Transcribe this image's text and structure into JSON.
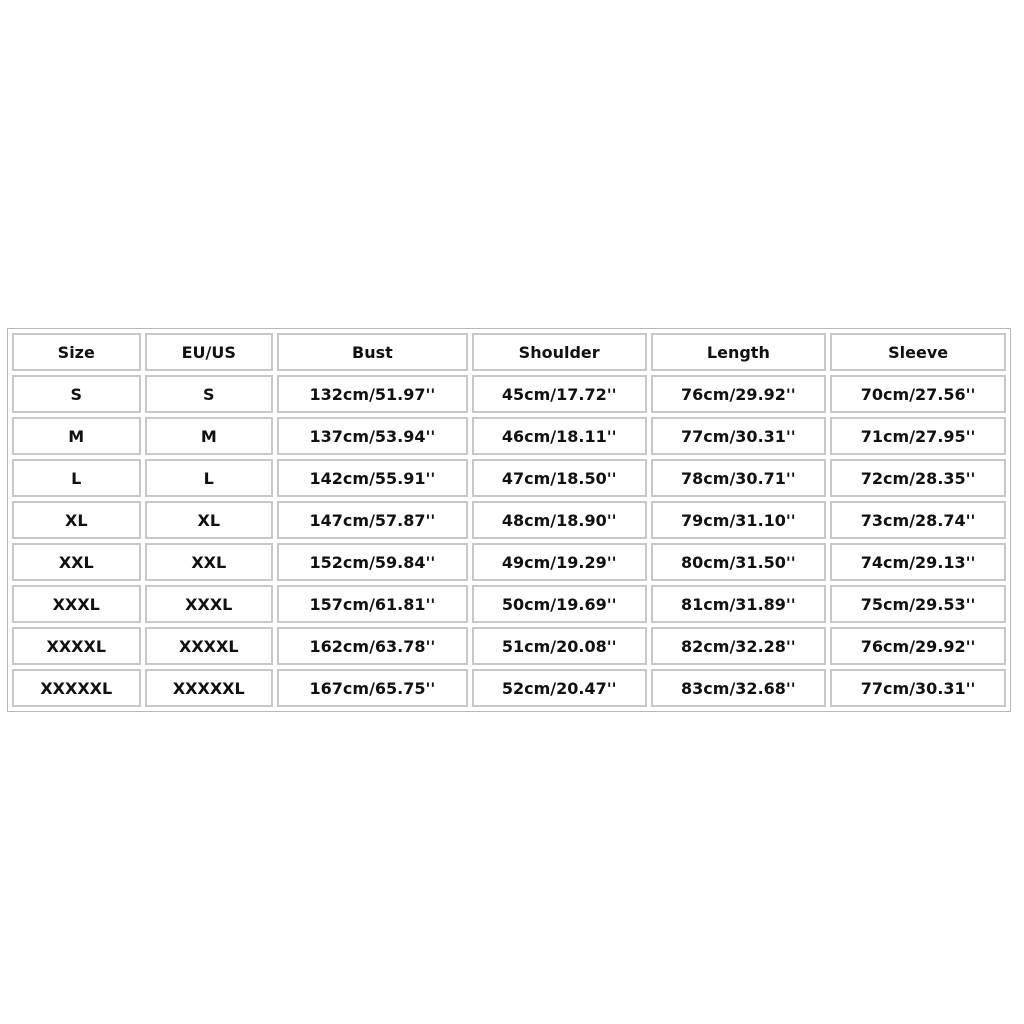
{
  "size_chart": {
    "headers": [
      "Size",
      "EU/US",
      "Bust",
      "Shoulder",
      "Length",
      "Sleeve"
    ],
    "rows": [
      [
        "S",
        "S",
        "132cm/51.97''",
        "45cm/17.72''",
        "76cm/29.92''",
        "70cm/27.56''"
      ],
      [
        "M",
        "M",
        "137cm/53.94''",
        "46cm/18.11''",
        "77cm/30.31''",
        "71cm/27.95''"
      ],
      [
        "L",
        "L",
        "142cm/55.91''",
        "47cm/18.50''",
        "78cm/30.71''",
        "72cm/28.35''"
      ],
      [
        "XL",
        "XL",
        "147cm/57.87''",
        "48cm/18.90''",
        "79cm/31.10''",
        "73cm/28.74''"
      ],
      [
        "XXL",
        "XXL",
        "152cm/59.84''",
        "49cm/19.29''",
        "80cm/31.50''",
        "74cm/29.13''"
      ],
      [
        "XXXL",
        "XXXL",
        "157cm/61.81''",
        "50cm/19.69''",
        "81cm/31.89''",
        "75cm/29.53''"
      ],
      [
        "XXXXL",
        "XXXXL",
        "162cm/63.78''",
        "51cm/20.08''",
        "82cm/32.28''",
        "76cm/29.92''"
      ],
      [
        "XXXXXL",
        "XXXXXL",
        "167cm/65.75''",
        "52cm/20.47''",
        "83cm/32.68''",
        "77cm/30.31''"
      ]
    ]
  }
}
